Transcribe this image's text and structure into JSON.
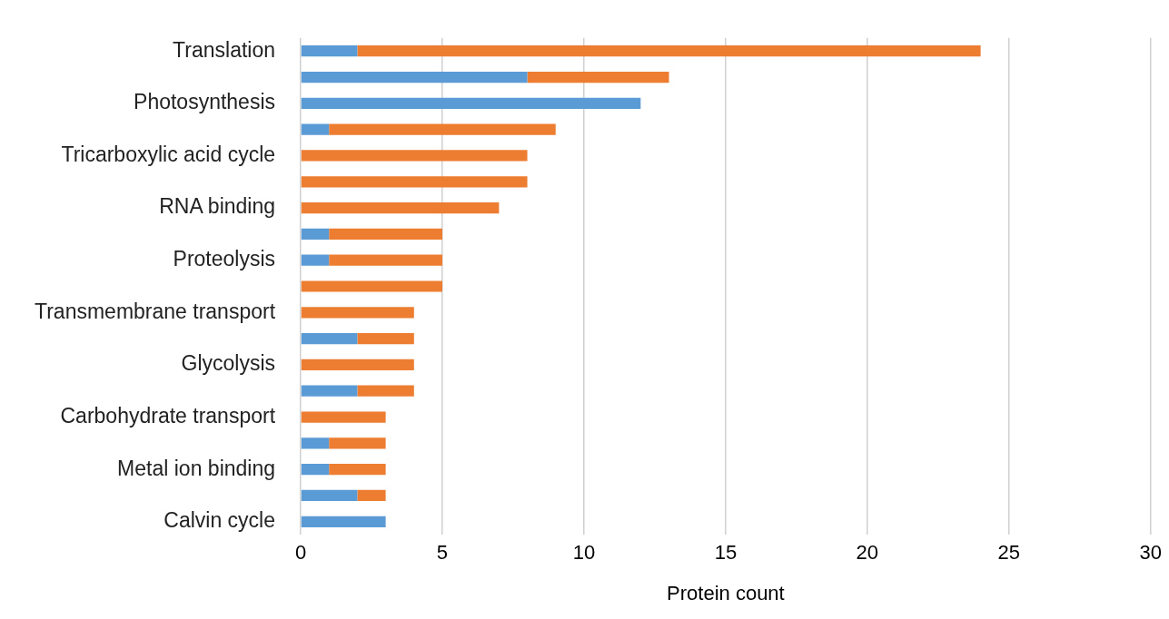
{
  "chart_data": {
    "type": "bar",
    "orientation": "horizontal",
    "stacked": true,
    "xlabel": "Protein count",
    "categories": [
      "Translation",
      null,
      "Photosynthesis",
      null,
      "Tricarboxylic acid cycle",
      null,
      "RNA binding",
      null,
      "Proteolysis",
      null,
      "Transmembrane transport",
      null,
      "Glycolysis",
      null,
      "Carbohydrate transport",
      null,
      "Metal ion binding",
      null,
      "Calvin cycle"
    ],
    "series": [
      {
        "color": "#5b9bd5",
        "values": [
          2,
          8,
          12,
          1,
          0,
          0,
          0,
          1,
          1,
          0,
          0,
          2,
          0,
          2,
          0,
          1,
          1,
          2,
          3
        ]
      },
      {
        "color": "#ed7d31",
        "values": [
          22,
          5,
          0,
          8,
          8,
          8,
          7,
          4,
          4,
          5,
          4,
          2,
          4,
          2,
          3,
          2,
          2,
          1,
          0
        ]
      }
    ],
    "xlim": [
      0,
      30
    ],
    "xticks": [
      0,
      5,
      10,
      15,
      20,
      25,
      30
    ],
    "grid": "x",
    "legend": false
  }
}
